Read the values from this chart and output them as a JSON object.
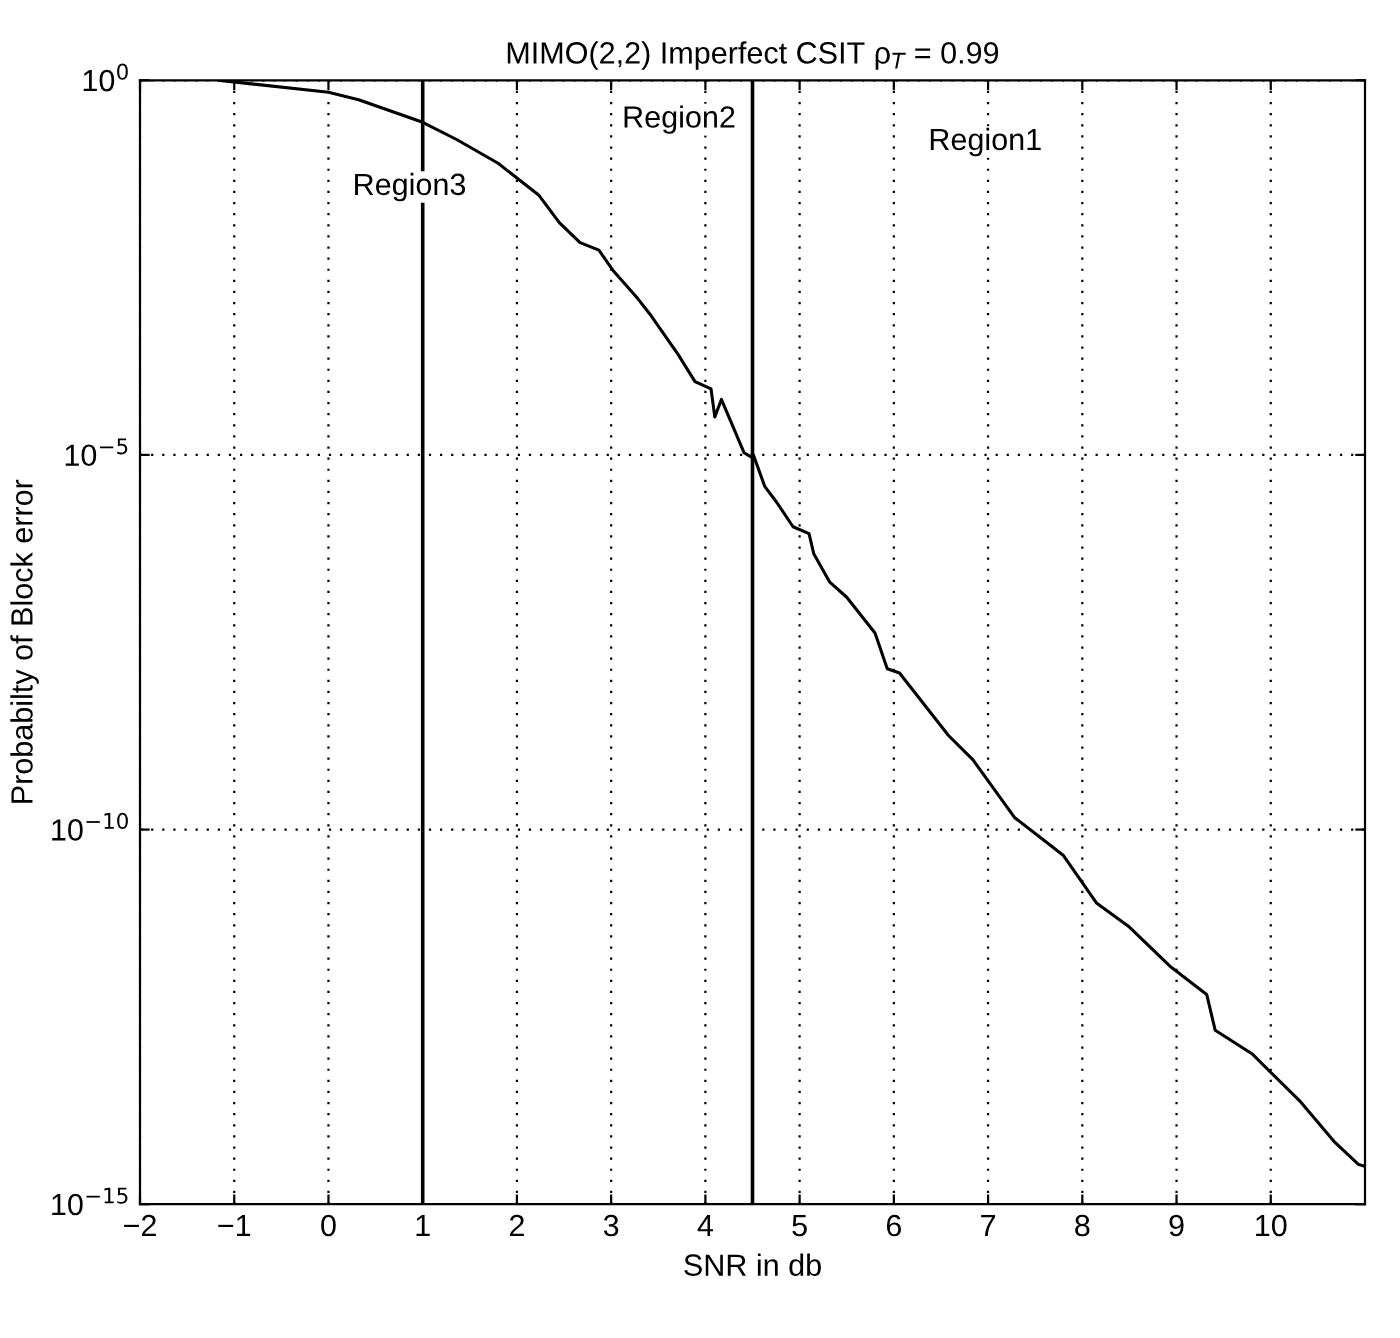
{
  "chart_data": {
    "type": "line",
    "title": "MIMO(2,2) Imperfect CSIT ρ$_{T}$ = 0.99",
    "xlabel": "SNR in db",
    "ylabel": "Probabilty of Block error",
    "x": [
      -1.16,
      0,
      0.32,
      1.0,
      1.36,
      1.8,
      2.23,
      2.45,
      2.67,
      2.87,
      3.02,
      3.28,
      3.41,
      3.71,
      3.89,
      4.06,
      4.1,
      4.17,
      4.41,
      4.48,
      4.51,
      4.63,
      4.76,
      4.93,
      5.1,
      5.15,
      5.32,
      5.5,
      5.8,
      5.93,
      6.06,
      6.32,
      6.58,
      6.84,
      7.28,
      7.63,
      7.8,
      8.15,
      8.5,
      8.93,
      9.32,
      9.41,
      9.8,
      10.32,
      10.67,
      10.93,
      11.0
    ],
    "series": [
      {
        "color": "#000000",
        "values": [
          1.0,
          0.69,
          0.55,
          0.275,
          0.162,
          0.078,
          0.0295,
          0.0126,
          0.0068,
          0.0054,
          0.0029,
          0.00123,
          0.00076,
          0.00022,
          9.5e-05,
          7.6e-05,
          3.2e-05,
          5.5e-05,
          1.07e-05,
          9.5e-06,
          1e-05,
          3.8e-06,
          2.3e-06,
          1.1e-06,
          8.9e-07,
          4.8e-07,
          2e-07,
          1.26e-07,
          4.2e-08,
          1.4e-08,
          1.23e-08,
          4.7e-09,
          1.8e-09,
          8.5e-10,
          1.45e-10,
          6.6e-11,
          4.5e-11,
          1.05e-11,
          5e-12,
          1.5e-12,
          6.3e-13,
          2.1e-13,
          1.02e-13,
          2.3e-14,
          6.9e-15,
          3.4e-15,
          3.2e-15
        ]
      }
    ],
    "log": "y",
    "xlim": [
      -2,
      11
    ],
    "xticks": [
      {
        "value": -2,
        "label": "−2"
      },
      {
        "value": -1,
        "label": "−1"
      },
      0,
      1,
      2,
      3,
      4,
      5,
      6,
      7,
      8,
      9,
      10
    ],
    "ylim": [
      1e-15,
      1
    ],
    "yticks": [
      {
        "value": 1e-15,
        "label": "10$^{−15}$"
      },
      {
        "value": 1e-10,
        "label": "10$^{−10}$"
      },
      {
        "value": 1e-05,
        "label": "10$^{−5}$"
      },
      {
        "value": 1,
        "label": "10$^{0}$"
      }
    ],
    "grid": true,
    "marker": "none",
    "line_style": "solid",
    "ref_lines": [
      {
        "axis": "x",
        "value": 1,
        "color": "#000000",
        "line_style": "solid"
      },
      {
        "axis": "x",
        "value": 4.5,
        "color": "#000000",
        "line_style": "solid"
      }
    ],
    "annotations": [
      "Region3",
      "Region2",
      "Region1"
    ]
  }
}
